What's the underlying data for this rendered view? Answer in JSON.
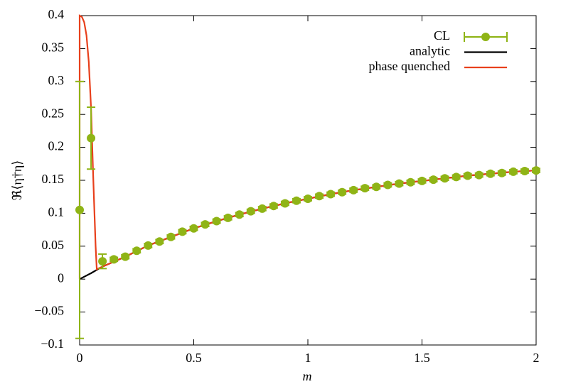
{
  "chart_data": {
    "type": "line",
    "xlabel": "m",
    "ylabel": "ℜ⟨η†η⟩",
    "xlim": [
      0,
      2
    ],
    "ylim": [
      -0.1,
      0.4
    ],
    "xticks": [
      0,
      0.5,
      1,
      1.5,
      2
    ],
    "yticks": [
      {
        "value": -0.1,
        "label": "−0.1"
      },
      {
        "value": -0.05,
        "label": "−0.05"
      },
      0,
      0.05,
      0.1,
      0.15,
      0.2,
      0.25,
      0.3,
      0.35,
      0.4
    ],
    "legend": "top-right",
    "series": [
      {
        "name": "CL",
        "color": "#8fb416",
        "style": "points",
        "x": [
          0,
          0.05,
          0.1,
          0.15,
          0.2,
          0.25,
          0.3,
          0.35,
          0.4,
          0.45,
          0.5,
          0.55,
          0.6,
          0.65,
          0.7,
          0.75,
          0.8,
          0.85,
          0.9,
          0.95,
          1,
          1.05,
          1.1,
          1.15,
          1.2,
          1.25,
          1.3,
          1.35,
          1.4,
          1.45,
          1.5,
          1.55,
          1.6,
          1.65,
          1.7,
          1.75,
          1.8,
          1.85,
          1.9,
          1.95,
          2
        ],
        "values": [
          0.105,
          0.214,
          0.027,
          0.03,
          0.034,
          0.043,
          0.051,
          0.057,
          0.064,
          0.072,
          0.077,
          0.083,
          0.088,
          0.093,
          0.098,
          0.103,
          0.107,
          0.111,
          0.115,
          0.119,
          0.122,
          0.126,
          0.129,
          0.132,
          0.135,
          0.138,
          0.14,
          0.143,
          0.145,
          0.147,
          0.149,
          0.151,
          0.153,
          0.155,
          0.157,
          0.158,
          0.16,
          0.161,
          0.163,
          0.164,
          0.165
        ],
        "errors": [
          0.195,
          0.047,
          0.011,
          0.003,
          0.003,
          0.003,
          0.003,
          0.003,
          0.003,
          0.003,
          0.003,
          0.003,
          0.003,
          0.003,
          0.003,
          0.003,
          0.003,
          0.003,
          0.003,
          0.003,
          0.003,
          0.003,
          0.003,
          0.003,
          0.003,
          0.003,
          0.003,
          0.003,
          0.003,
          0.003,
          0.003,
          0.003,
          0.003,
          0.003,
          0.003,
          0.003,
          0.003,
          0.003,
          0.003,
          0.003,
          0.003
        ]
      },
      {
        "name": "analytic",
        "color": "#000000",
        "style": "line",
        "x": [
          0,
          0.05,
          0.1,
          0.2,
          0.3,
          0.4,
          0.5,
          0.6,
          0.7,
          0.8,
          0.9,
          1,
          1.1,
          1.2,
          1.3,
          1.4,
          1.5,
          1.6,
          1.7,
          1.8,
          1.9,
          2
        ],
        "values": [
          0,
          0.009,
          0.019,
          0.034,
          0.051,
          0.064,
          0.077,
          0.088,
          0.098,
          0.107,
          0.115,
          0.122,
          0.129,
          0.135,
          0.14,
          0.145,
          0.149,
          0.153,
          0.157,
          0.16,
          0.163,
          0.165
        ]
      },
      {
        "name": "phase quenched",
        "color": "#e8401c",
        "style": "line",
        "x": [
          0,
          0,
          0.01,
          0.02,
          0.03,
          0.04,
          0.05,
          0.06,
          0.07,
          0.075,
          0.1,
          0.2,
          0.3,
          0.4,
          0.5,
          0.6,
          0.7,
          0.8,
          0.9,
          1,
          1.1,
          1.2,
          1.3,
          1.4,
          1.5,
          1.6,
          1.7,
          1.8,
          1.9,
          2
        ],
        "values": [
          0,
          0.4,
          0.398,
          0.39,
          0.37,
          0.33,
          0.26,
          0.15,
          0.05,
          0.015,
          0.019,
          0.034,
          0.051,
          0.064,
          0.077,
          0.088,
          0.098,
          0.107,
          0.115,
          0.122,
          0.129,
          0.135,
          0.14,
          0.145,
          0.149,
          0.153,
          0.157,
          0.16,
          0.163,
          0.165
        ]
      }
    ]
  }
}
